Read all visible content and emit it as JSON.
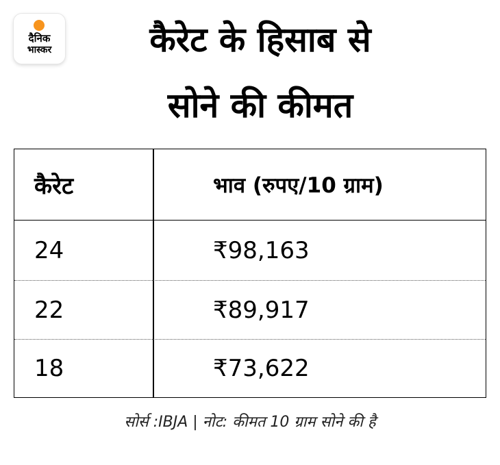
{
  "logo": {
    "line1": "दैनिक",
    "line2": "भास्कर",
    "sun_color": "#f7941d"
  },
  "title": {
    "line1": "कैरेट के हिसाब से",
    "line2": "सोने की कीमत"
  },
  "table": {
    "headers": {
      "karat": "कैरेट",
      "price": "भाव (रुपए/10 ग्राम)"
    },
    "rows": [
      {
        "karat": "24",
        "price": "₹98,163"
      },
      {
        "karat": "22",
        "price": "₹89,917"
      },
      {
        "karat": "18",
        "price": "₹73,622"
      }
    ]
  },
  "footer": "सोर्स :IBJA | नोट: कीमत 10 ग्राम सोने की है"
}
